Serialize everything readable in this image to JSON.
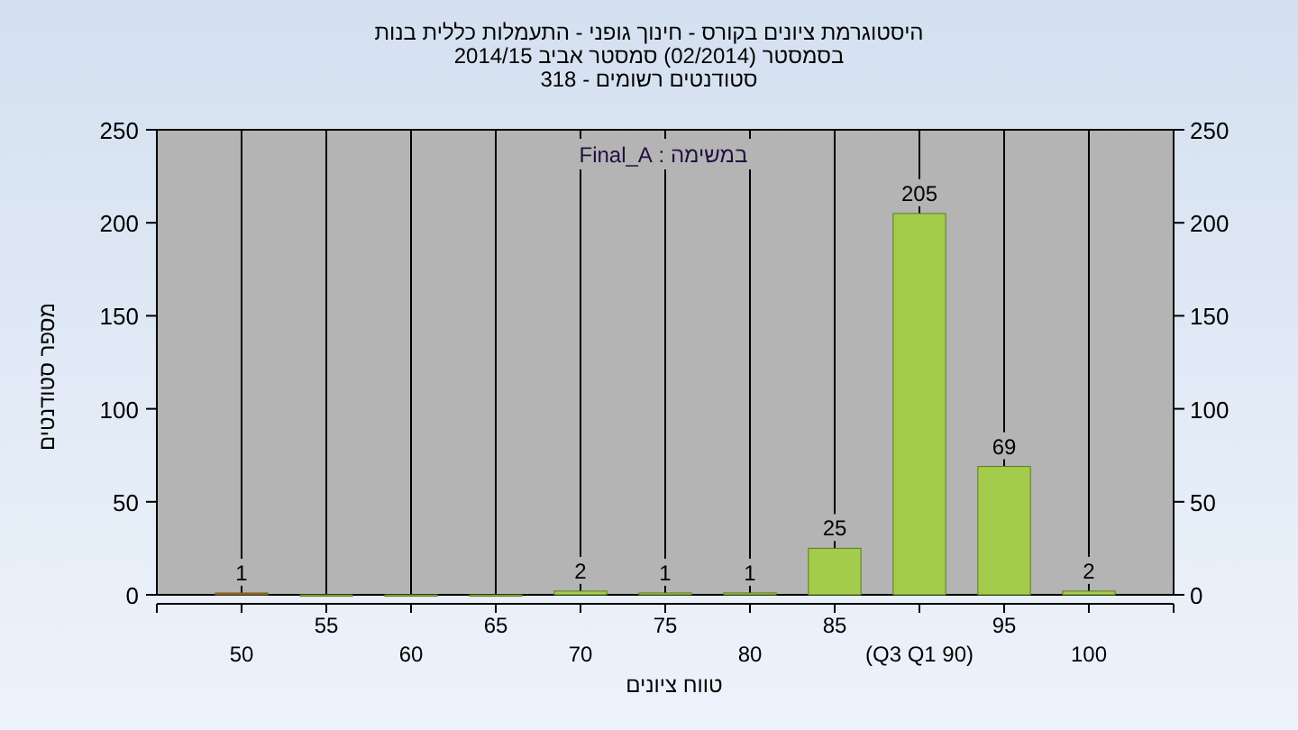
{
  "chart_data": {
    "type": "bar",
    "title": "היסטוגרמת ציונים בקורס - חינוך גופני - התעמלות כללית בנות",
    "subtitle": "בסמסטר (02/2014) סמסטר אביב 2014/15",
    "annotations": [
      "סטודנטים רשומים - 318",
      "במשימה : Final_A"
    ],
    "xlabel": "טווח ציונים",
    "ylabel": "מספר סטודנטים",
    "categories": [
      "50",
      "55",
      "60",
      "65",
      "70",
      "75",
      "80",
      "85",
      "(Q3 Q1 90)",
      "95",
      "100"
    ],
    "values": [
      1,
      0,
      0,
      0,
      2,
      1,
      1,
      25,
      205,
      69,
      2
    ],
    "value_labels": [
      "1",
      null,
      null,
      null,
      "2",
      "1",
      "1",
      "25",
      "205",
      "69",
      "2"
    ],
    "colors": [
      "#d03a2a",
      "#a4cc4c",
      "#a4cc4c",
      "#a4cc4c",
      "#a4cc4c",
      "#a4cc4c",
      "#a4cc4c",
      "#a4cc4c",
      "#a4cc4c",
      "#a4cc4c",
      "#a4cc4c"
    ],
    "ylim": [
      0,
      250
    ],
    "yticks": [
      0,
      50,
      100,
      150,
      200,
      250
    ],
    "y2lim": [
      0,
      250
    ],
    "y2ticks": [
      0,
      50,
      100,
      150,
      200,
      250
    ],
    "grid": "x"
  }
}
